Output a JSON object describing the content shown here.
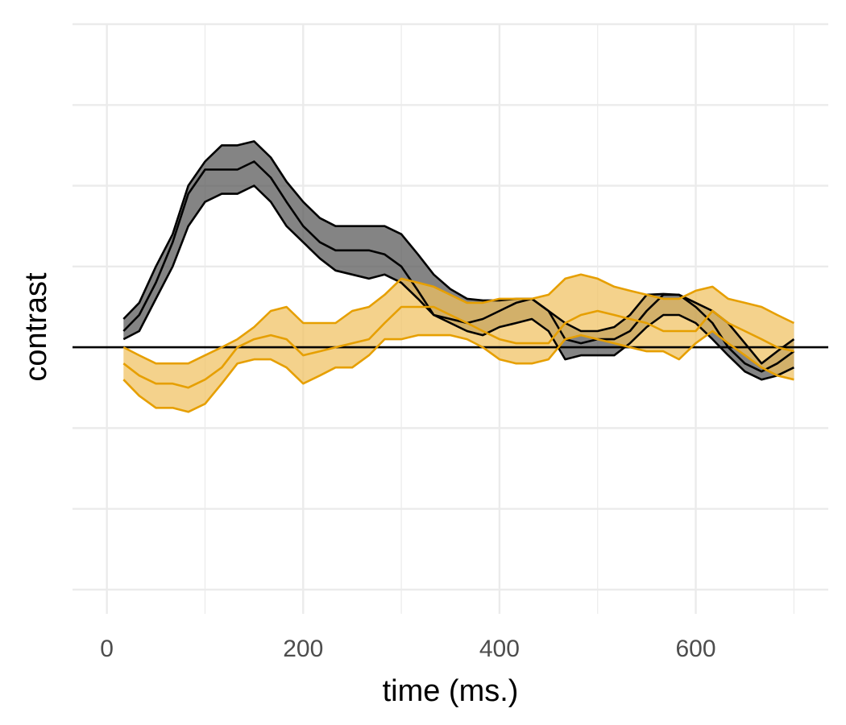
{
  "chart_data": {
    "type": "line",
    "title": "",
    "xlabel": "time (ms.)",
    "ylabel": "contrast",
    "xlim": [
      -35,
      735
    ],
    "ylim": [
      -3.3,
      4.0
    ],
    "x_ticks": [
      0,
      200,
      400,
      600
    ],
    "x_minor_ticks": [
      100,
      300,
      500,
      700
    ],
    "y_gridlines": [
      -3,
      -2,
      -1,
      0,
      1,
      2,
      3,
      4
    ],
    "y_tick_labels_shown": false,
    "zero_line": 0,
    "grid": true,
    "legend": "none",
    "x": [
      17,
      33,
      50,
      67,
      83,
      100,
      117,
      133,
      150,
      167,
      183,
      200,
      217,
      233,
      250,
      267,
      283,
      300,
      317,
      333,
      350,
      367,
      383,
      400,
      417,
      433,
      450,
      467,
      483,
      500,
      517,
      533,
      550,
      567,
      583,
      600,
      617,
      633,
      650,
      667,
      683,
      700
    ],
    "series": [
      {
        "color": "#000000",
        "fill": "#555555",
        "values": [
          0.2,
          0.4,
          0.8,
          1.3,
          1.9,
          2.2,
          2.2,
          2.2,
          2.3,
          2.1,
          1.8,
          1.5,
          1.3,
          1.2,
          1.2,
          1.2,
          1.15,
          1.0,
          0.7,
          0.4,
          0.35,
          0.3,
          0.35,
          0.45,
          0.55,
          0.6,
          0.45,
          0.1,
          0.05,
          0.1,
          0.1,
          0.2,
          0.45,
          0.65,
          0.65,
          0.5,
          0.3,
          0.0,
          -0.2,
          -0.3,
          -0.2,
          -0.05
        ],
        "lower": [
          0.1,
          0.2,
          0.6,
          1.0,
          1.5,
          1.8,
          1.9,
          1.9,
          2.0,
          1.8,
          1.5,
          1.3,
          1.1,
          0.95,
          0.9,
          0.85,
          0.9,
          0.8,
          0.6,
          0.4,
          0.3,
          0.2,
          0.15,
          0.25,
          0.3,
          0.35,
          0.2,
          -0.15,
          -0.1,
          -0.1,
          -0.1,
          0.05,
          0.25,
          0.4,
          0.4,
          0.3,
          0.1,
          -0.1,
          -0.3,
          -0.4,
          -0.35,
          -0.25
        ],
        "upper": [
          0.35,
          0.55,
          1.0,
          1.4,
          2.0,
          2.3,
          2.5,
          2.5,
          2.55,
          2.35,
          2.05,
          1.8,
          1.6,
          1.5,
          1.5,
          1.5,
          1.5,
          1.4,
          1.15,
          0.9,
          0.72,
          0.6,
          0.58,
          0.58,
          0.6,
          0.6,
          0.45,
          0.3,
          0.2,
          0.2,
          0.25,
          0.4,
          0.65,
          0.66,
          0.65,
          0.55,
          0.45,
          0.3,
          0.05,
          -0.2,
          -0.05,
          0.1
        ]
      },
      {
        "color": "#E69F00",
        "fill": "#F0C060",
        "values": [
          -0.2,
          -0.35,
          -0.45,
          -0.45,
          -0.5,
          -0.4,
          -0.25,
          0.0,
          0.1,
          0.15,
          0.1,
          -0.1,
          -0.05,
          0.0,
          0.05,
          0.1,
          0.3,
          0.5,
          0.5,
          0.5,
          0.4,
          0.3,
          0.2,
          0.1,
          0.05,
          0.05,
          0.05,
          0.3,
          0.4,
          0.45,
          0.4,
          0.35,
          0.3,
          0.2,
          0.2,
          0.2,
          0.45,
          0.3,
          0.2,
          0.1,
          0.0,
          -0.05
        ],
        "lower": [
          -0.4,
          -0.6,
          -0.75,
          -0.75,
          -0.8,
          -0.7,
          -0.45,
          -0.2,
          -0.15,
          -0.15,
          -0.25,
          -0.45,
          -0.35,
          -0.25,
          -0.25,
          -0.1,
          0.1,
          0.1,
          0.15,
          0.15,
          0.15,
          0.1,
          0.0,
          -0.15,
          -0.2,
          -0.2,
          -0.15,
          0.1,
          0.15,
          0.1,
          0.05,
          0.0,
          -0.05,
          -0.05,
          -0.15,
          0.05,
          0.2,
          0.05,
          -0.1,
          -0.25,
          -0.35,
          -0.4
        ],
        "upper": [
          0.0,
          -0.1,
          -0.2,
          -0.2,
          -0.2,
          -0.1,
          0.0,
          0.1,
          0.25,
          0.45,
          0.5,
          0.3,
          0.3,
          0.3,
          0.45,
          0.5,
          0.65,
          0.85,
          0.8,
          0.75,
          0.65,
          0.55,
          0.55,
          0.6,
          0.6,
          0.6,
          0.65,
          0.85,
          0.9,
          0.85,
          0.75,
          0.7,
          0.65,
          0.6,
          0.6,
          0.7,
          0.75,
          0.6,
          0.55,
          0.5,
          0.4,
          0.3
        ]
      }
    ]
  }
}
